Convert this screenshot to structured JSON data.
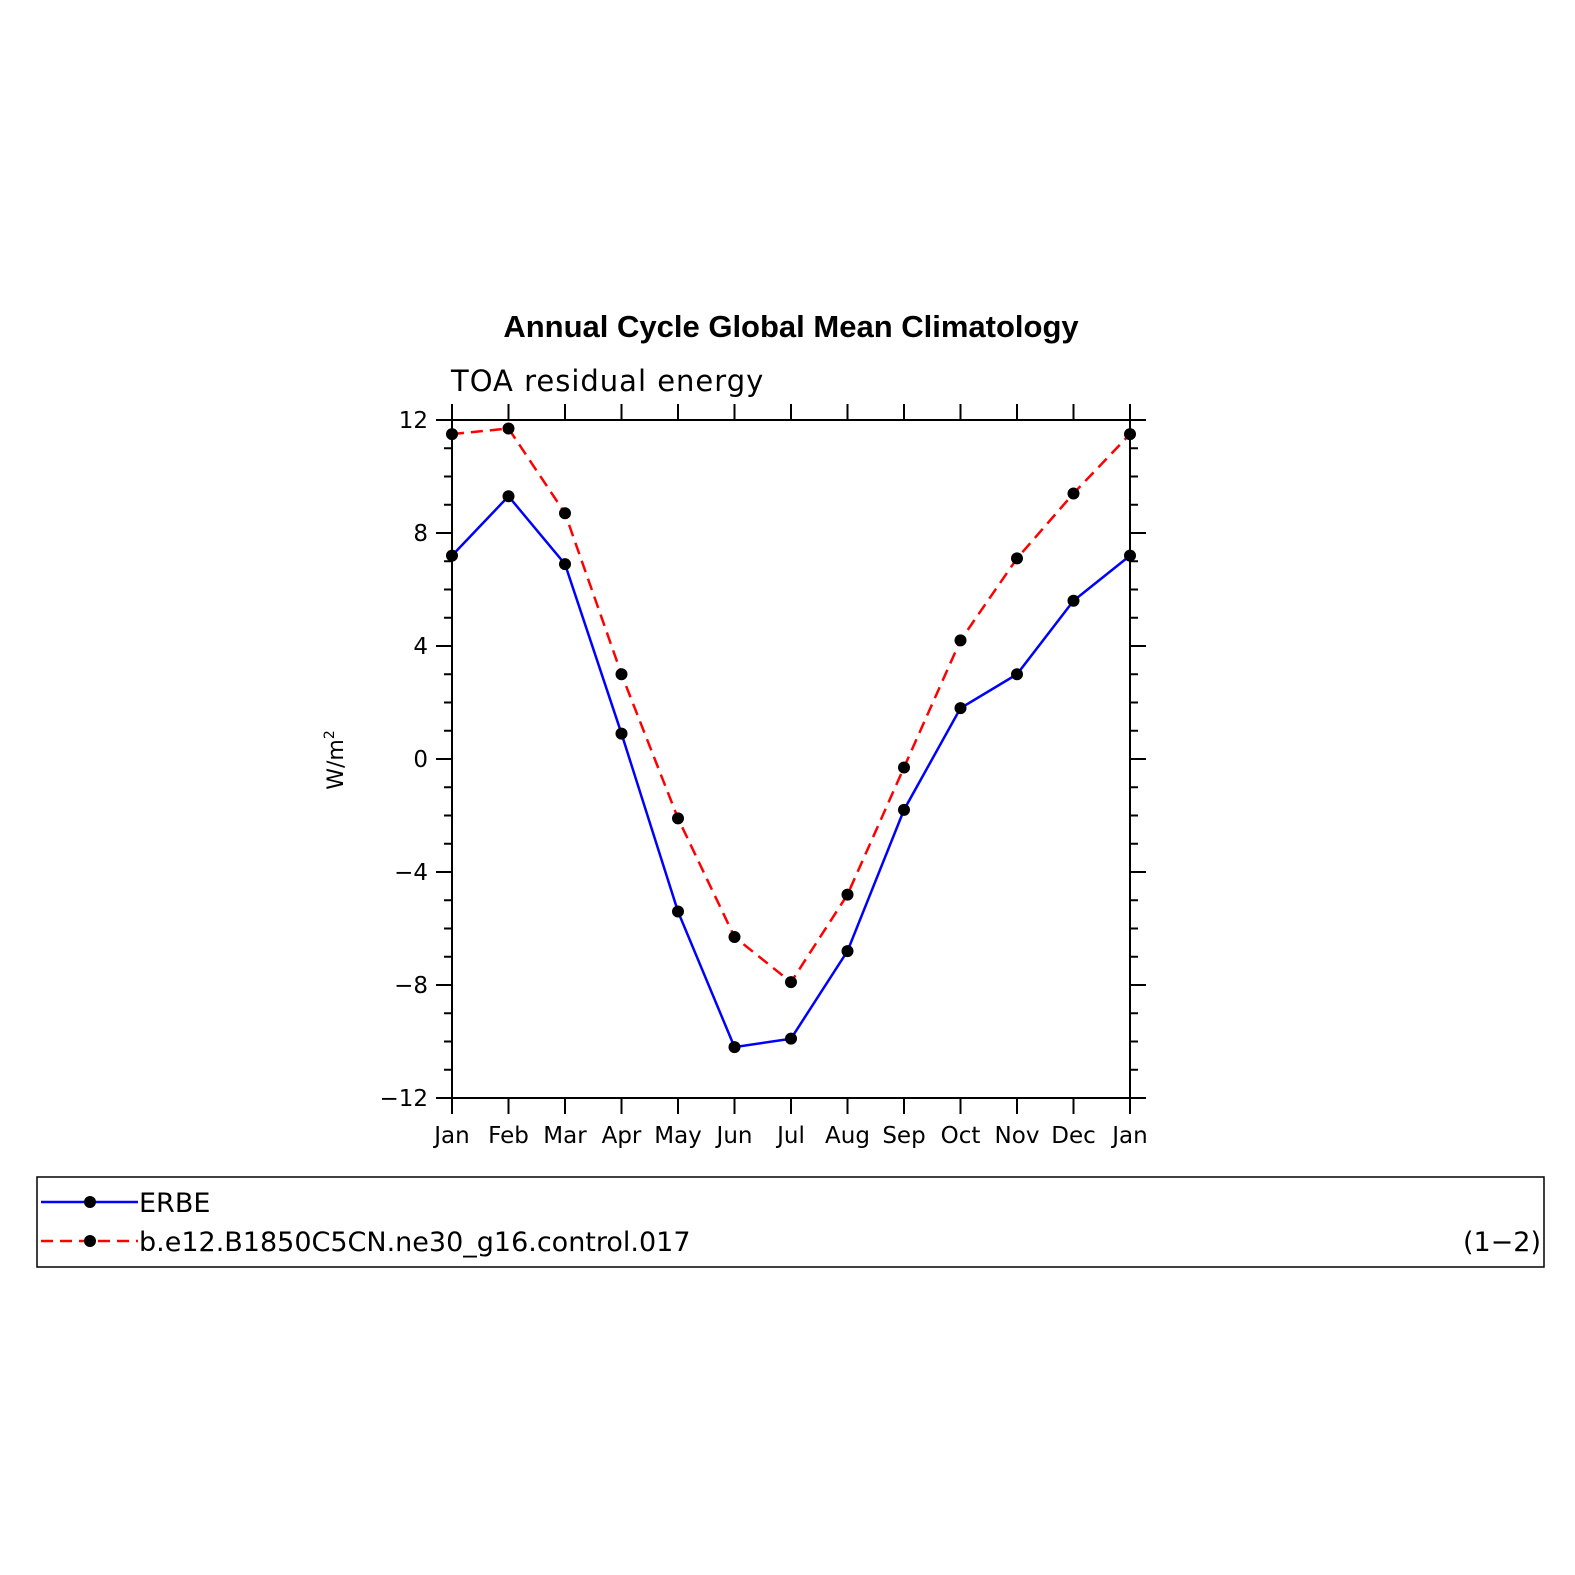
{
  "chart_data": {
    "type": "line",
    "title": "Annual Cycle Global Mean Climatology",
    "subtitle": "TOA residual energy",
    "ylabel": "W/m",
    "ylabel_superscript": "2",
    "categories": [
      "Jan",
      "Feb",
      "Mar",
      "Apr",
      "May",
      "Jun",
      "Jul",
      "Aug",
      "Sep",
      "Oct",
      "Nov",
      "Dec",
      "Jan"
    ],
    "ylim": [
      -12,
      12
    ],
    "yticks": [
      -12,
      -8,
      -4,
      0,
      4,
      8,
      12
    ],
    "ytick_labels": [
      "−12",
      "−8",
      "−4",
      "0",
      "4",
      "8",
      "12"
    ],
    "grid": false,
    "legend_placement": "bottom",
    "series": [
      {
        "name": "ERBE",
        "color": "#0000ff",
        "dash": "solid",
        "values": [
          7.2,
          9.3,
          6.9,
          0.9,
          -5.4,
          -10.2,
          -9.9,
          -6.8,
          -1.8,
          1.8,
          3.0,
          5.6,
          7.2
        ]
      },
      {
        "name": "b.e12.B1850C5CN.ne30_g16.control.017",
        "color": "#ff0000",
        "dash": "dashed",
        "values": [
          11.5,
          11.7,
          8.7,
          3.0,
          -2.1,
          -6.3,
          -7.9,
          -4.8,
          -0.3,
          4.2,
          7.1,
          9.4,
          11.5
        ]
      }
    ],
    "legend_note": "(1−2)"
  }
}
